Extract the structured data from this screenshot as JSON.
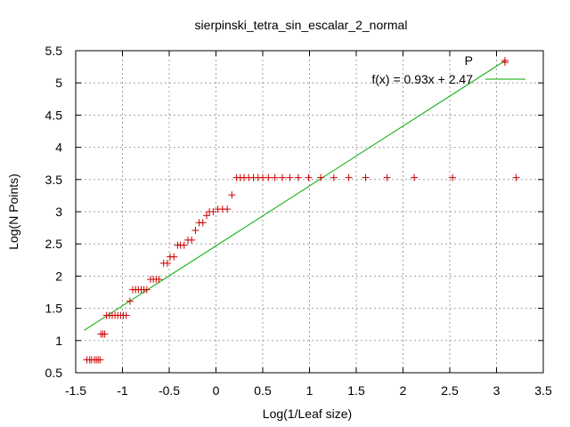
{
  "chart_data": {
    "type": "scatter",
    "title": "sierpinski_tetra_sin_escalar_2_normal",
    "xlabel": "Log(1/Leaf size)",
    "ylabel": "Log(N Points)",
    "xlim": [
      -1.5,
      3.5
    ],
    "ylim": [
      0.5,
      5.5
    ],
    "xticks": [
      "-1.5",
      "-1",
      "-0.5",
      "0",
      "0.5",
      "1",
      "1.5",
      "2",
      "2.5",
      "3",
      "3.5"
    ],
    "yticks": [
      "0.5",
      "1",
      "1.5",
      "2",
      "2.5",
      "3",
      "3.5",
      "4",
      "4.5",
      "5",
      "5.5"
    ],
    "grid": true,
    "legend_position": "top-right",
    "series": [
      {
        "name": "P",
        "marker": "+",
        "color": "#cc0000",
        "points": [
          [
            -1.38,
            0.7
          ],
          [
            -1.35,
            0.7
          ],
          [
            -1.33,
            0.7
          ],
          [
            -1.3,
            0.7
          ],
          [
            -1.28,
            0.7
          ],
          [
            -1.26,
            0.7
          ],
          [
            -1.24,
            0.7
          ],
          [
            -1.23,
            1.1
          ],
          [
            -1.21,
            1.1
          ],
          [
            -1.19,
            1.1
          ],
          [
            -1.17,
            1.39
          ],
          [
            -1.14,
            1.39
          ],
          [
            -1.11,
            1.39
          ],
          [
            -1.08,
            1.39
          ],
          [
            -1.05,
            1.39
          ],
          [
            -1.02,
            1.39
          ],
          [
            -0.99,
            1.39
          ],
          [
            -0.96,
            1.39
          ],
          [
            -0.92,
            1.61
          ],
          [
            -0.89,
            1.79
          ],
          [
            -0.86,
            1.79
          ],
          [
            -0.83,
            1.79
          ],
          [
            -0.8,
            1.79
          ],
          [
            -0.77,
            1.79
          ],
          [
            -0.74,
            1.79
          ],
          [
            -0.7,
            1.95
          ],
          [
            -0.67,
            1.95
          ],
          [
            -0.64,
            1.95
          ],
          [
            -0.61,
            1.95
          ],
          [
            -0.56,
            2.2
          ],
          [
            -0.52,
            2.2
          ],
          [
            -0.49,
            2.3
          ],
          [
            -0.45,
            2.3
          ],
          [
            -0.41,
            2.48
          ],
          [
            -0.38,
            2.48
          ],
          [
            -0.34,
            2.48
          ],
          [
            -0.3,
            2.56
          ],
          [
            -0.26,
            2.56
          ],
          [
            -0.22,
            2.71
          ],
          [
            -0.18,
            2.83
          ],
          [
            -0.14,
            2.83
          ],
          [
            -0.1,
            2.94
          ],
          [
            -0.07,
            3.0
          ],
          [
            -0.03,
            3.0
          ],
          [
            0.02,
            3.04
          ],
          [
            0.07,
            3.04
          ],
          [
            0.12,
            3.04
          ],
          [
            0.17,
            3.26
          ],
          [
            0.22,
            3.53
          ],
          [
            0.26,
            3.53
          ],
          [
            0.3,
            3.53
          ],
          [
            0.35,
            3.53
          ],
          [
            0.4,
            3.53
          ],
          [
            0.45,
            3.53
          ],
          [
            0.5,
            3.53
          ],
          [
            0.56,
            3.53
          ],
          [
            0.63,
            3.53
          ],
          [
            0.71,
            3.53
          ],
          [
            0.79,
            3.53
          ],
          [
            0.88,
            3.53
          ],
          [
            0.99,
            3.53
          ],
          [
            1.12,
            3.53
          ],
          [
            1.26,
            3.53
          ],
          [
            1.42,
            3.53
          ],
          [
            1.6,
            3.53
          ],
          [
            1.83,
            3.53
          ],
          [
            2.12,
            3.53
          ],
          [
            2.53,
            3.53
          ],
          [
            3.21,
            3.53
          ],
          [
            3.09,
            5.32
          ]
        ]
      },
      {
        "name": "f(x) = 0.93x + 2.47",
        "type": "line",
        "color": "#00aa00",
        "slope": 0.93,
        "intercept": 2.47,
        "x_range": [
          -1.41,
          3.09
        ]
      }
    ]
  }
}
